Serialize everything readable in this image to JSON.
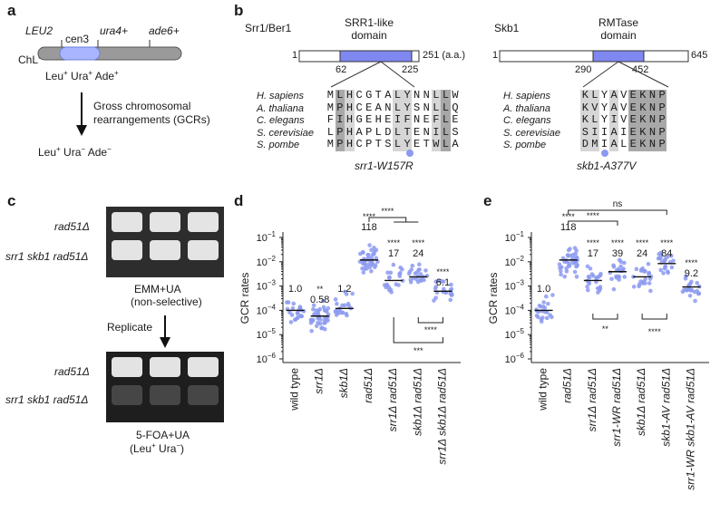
{
  "panels": {
    "a": "a",
    "b": "b",
    "c": "c",
    "d": "d",
    "e": "e"
  },
  "panel_a": {
    "chromosome_label_main": "ChL",
    "chromosome_label_sup": "C",
    "markers": [
      "LEU2",
      "cen3",
      "ura4+",
      "ade6+"
    ],
    "phenotype_top": {
      "parts": [
        "Leu",
        "+",
        " Ura",
        "+",
        " Ade",
        "+"
      ]
    },
    "arrow_text_1": "Gross chromosomal",
    "arrow_text_2": "rearrangements (GCRs)",
    "phenotype_bottom": {
      "parts": [
        "Leu",
        "+",
        " Ura",
        "−",
        " Ade",
        "−"
      ]
    }
  },
  "panel_b": {
    "left": {
      "protein": "Srr1/Ber1",
      "domain_line1": "SRR1-like",
      "domain_line2": "domain",
      "start": "1",
      "end": "251 (a.a.)",
      "d_start": "62",
      "d_end": "225",
      "species": [
        "H. sapiens",
        "A. thaliana",
        "C. elegans",
        "S. cerevisiae",
        "S. pombe"
      ],
      "sequences": [
        "MLHCGTALYNNLLW",
        "MPHCEANLYSNLLQ",
        "FIHGEHEIFNEFLE",
        "LPHAPLDLTENILS",
        "MPHCPTSLYETWLA"
      ],
      "mutation": "srr1-W157R"
    },
    "right": {
      "protein": "Skb1",
      "domain_line1": "RMTase",
      "domain_line2": "domain",
      "start": "1",
      "end": "645",
      "d_start": "290",
      "d_end": "452",
      "species": [
        "H. sapiens",
        "A. thaliana",
        "C. elegans",
        "S. cerevisiae",
        "S. pombe"
      ],
      "sequences": [
        "KLYAVEKNP",
        "KVYAVEKNP",
        "KLYIVEKNP",
        "SIIAIEKNP",
        "DMIALEKNP"
      ],
      "mutation": "skb1-A377V"
    },
    "mutation_dot_color": "#8c9af0"
  },
  "panel_c": {
    "top_rows": [
      "rad51Δ",
      "srr1 skb1 rad51Δ"
    ],
    "top_caption_1": "EMM+UA",
    "top_caption_2": "(non-selective)",
    "replicate": "Replicate",
    "bottom_rows": [
      "rad51Δ",
      "srr1 skb1 rad51Δ"
    ],
    "bottom_caption_1": "5-FOA+UA",
    "bottom_caption_2": {
      "parts": [
        "(Leu",
        "+",
        " Ura",
        "−",
        ")"
      ]
    }
  },
  "chart_data": [
    {
      "type": "scatter",
      "panel": "d",
      "ylabel": "GCR rates",
      "yscale": "log",
      "ylim": [
        1e-06,
        0.1
      ],
      "yticks": [
        "10",
        "10",
        "10",
        "10",
        "10",
        "10"
      ],
      "ytick_exponents": [
        "−6",
        "−5",
        "−4",
        "−3",
        "−2",
        "−1"
      ],
      "categories": [
        "wild type",
        "srr1Δ",
        "skb1Δ",
        "rad51Δ",
        "srr1Δ rad51Δ",
        "skb1Δ rad51Δ",
        "srr1Δ skb1Δ rad51Δ"
      ],
      "medians": [
        0.0001,
        5.8e-05,
        0.00012,
        0.0118,
        0.0017,
        0.0024,
        0.00061
      ],
      "median_labels": [
        "1.0",
        "0.58",
        "1.2",
        "118",
        "17",
        "24",
        "6.1"
      ],
      "significance": [
        "",
        "**",
        "",
        "****",
        "****",
        "****",
        "****"
      ],
      "brackets": [
        {
          "from": "rad51Δ",
          "to": "srr1Δ rad51Δ / skb1Δ rad51Δ",
          "label": "****"
        },
        {
          "from": "skb1Δ rad51Δ",
          "to": "srr1Δ skb1Δ rad51Δ",
          "label": "****"
        },
        {
          "from": "srr1Δ rad51Δ",
          "to": "srr1Δ skb1Δ rad51Δ",
          "label": "***"
        }
      ],
      "point_color": "#8c9af0"
    },
    {
      "type": "scatter",
      "panel": "e",
      "ylabel": "GCR rates",
      "yscale": "log",
      "ylim": [
        1e-06,
        0.1
      ],
      "yticks": [
        "10",
        "10",
        "10",
        "10",
        "10",
        "10"
      ],
      "ytick_exponents": [
        "−6",
        "−5",
        "−4",
        "−3",
        "−2",
        "−1"
      ],
      "categories": [
        "wild type",
        "rad51Δ",
        "srr1Δ rad51Δ",
        "srr1-WR rad51Δ",
        "skb1Δ rad51Δ",
        "skb1-AV rad51Δ",
        "srr1-WR skb1-AV rad51Δ"
      ],
      "medians": [
        0.0001,
        0.0118,
        0.0017,
        0.0039,
        0.0024,
        0.0084,
        0.00092
      ],
      "median_labels": [
        "1.0",
        "118",
        "17",
        "39",
        "24",
        "84",
        "9.2"
      ],
      "significance": [
        "",
        "****",
        "****",
        "****",
        "****",
        "****",
        "****"
      ],
      "brackets": [
        {
          "from": "rad51Δ",
          "to": "skb1-AV rad51Δ",
          "label": "ns"
        },
        {
          "from": "rad51Δ",
          "to": "srr1-WR rad51Δ",
          "label": "****"
        },
        {
          "from": "srr1Δ rad51Δ",
          "to": "srr1-WR rad51Δ",
          "label": "**"
        },
        {
          "from": "skb1Δ rad51Δ",
          "to": "skb1-AV rad51Δ",
          "label": "****"
        }
      ],
      "point_color": "#8c9af0"
    }
  ]
}
